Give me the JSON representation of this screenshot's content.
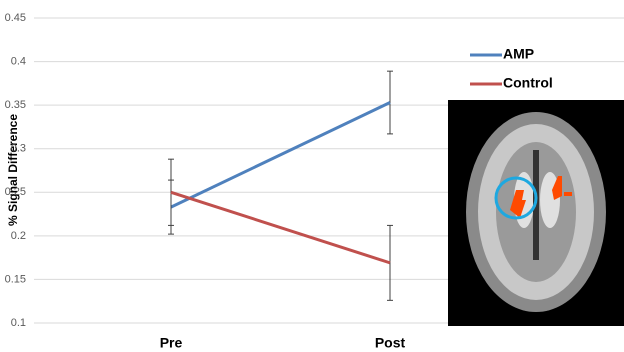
{
  "chart_data": {
    "type": "line",
    "y_label": "% Signal Difference",
    "categories": [
      "Pre",
      "Post"
    ],
    "series": [
      {
        "name": "AMP",
        "color": "#4f81bd",
        "values": [
          0.233,
          0.353
        ],
        "errors": [
          0.031,
          0.036
        ]
      },
      {
        "name": "Control",
        "color": "#c0504d",
        "values": [
          0.25,
          0.169
        ],
        "errors": [
          0.038,
          0.043
        ]
      }
    ],
    "ylim": [
      0.1,
      0.45
    ],
    "yticks": [
      0.1,
      0.15,
      0.2,
      0.25,
      0.3,
      0.35,
      0.4,
      0.45
    ],
    "grid": true
  }
}
